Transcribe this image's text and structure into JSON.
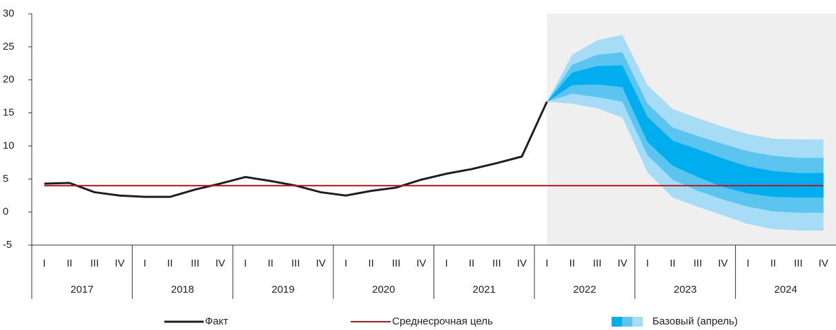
{
  "chart_data": {
    "type": "fan",
    "categories": [
      "I",
      "II",
      "III",
      "IV",
      "I",
      "II",
      "III",
      "IV",
      "I",
      "II",
      "III",
      "IV",
      "I",
      "II",
      "III",
      "IV",
      "I",
      "II",
      "III",
      "IV",
      "I",
      "II",
      "III",
      "IV",
      "I",
      "II",
      "III",
      "IV",
      "I",
      "II",
      "III",
      "IV"
    ],
    "years": [
      "2017",
      "2018",
      "2019",
      "2020",
      "2021",
      "2022",
      "2023",
      "2024"
    ],
    "ylim": [
      -5,
      30
    ],
    "yticks": [
      -5,
      0,
      5,
      10,
      15,
      20,
      25,
      30
    ],
    "series": [
      {
        "name": "Факт",
        "color": "#1e1e1e",
        "values": [
          4.3,
          4.4,
          3.0,
          2.5,
          2.3,
          2.3,
          3.4,
          4.3,
          5.3,
          4.7,
          4.0,
          3.0,
          2.5,
          3.2,
          3.7,
          4.9,
          5.8,
          6.5,
          7.4,
          8.4,
          16.7,
          null,
          null,
          null,
          null,
          null,
          null,
          null,
          null,
          null,
          null,
          null
        ]
      },
      {
        "name": "Среднесрочная цель",
        "color": "#c0131a",
        "values": [
          4,
          4,
          4,
          4,
          4,
          4,
          4,
          4,
          4,
          4,
          4,
          4,
          4,
          4,
          4,
          4,
          4,
          4,
          4,
          4,
          4,
          4,
          4,
          4,
          4,
          4,
          4,
          4,
          4,
          4,
          4,
          4
        ]
      }
    ],
    "fan": {
      "name": "Базовый (апрель)",
      "colors": [
        "#a6dcf5",
        "#5bc5f0",
        "#00aeef"
      ],
      "bands": [
        {
          "upper": [
            null,
            null,
            null,
            null,
            null,
            null,
            null,
            null,
            null,
            null,
            null,
            null,
            null,
            null,
            null,
            null,
            null,
            null,
            null,
            null,
            16.7,
            23.8,
            26.0,
            26.8,
            19.2,
            15.6,
            14.2,
            12.9,
            11.8,
            11.1,
            11.0,
            11.0
          ],
          "lower": [
            null,
            null,
            null,
            null,
            null,
            null,
            null,
            null,
            null,
            null,
            null,
            null,
            null,
            null,
            null,
            null,
            null,
            null,
            null,
            null,
            16.7,
            16.4,
            15.7,
            14.3,
            6.0,
            2.2,
            0.8,
            -0.5,
            -1.8,
            -2.6,
            -2.8,
            -2.8
          ]
        },
        {
          "upper": [
            null,
            null,
            null,
            null,
            null,
            null,
            null,
            null,
            null,
            null,
            null,
            null,
            null,
            null,
            null,
            null,
            null,
            null,
            null,
            null,
            16.7,
            22.3,
            23.8,
            24.2,
            16.4,
            12.8,
            11.5,
            10.3,
            9.2,
            8.5,
            8.2,
            8.2
          ],
          "lower": [
            null,
            null,
            null,
            null,
            null,
            null,
            null,
            null,
            null,
            null,
            null,
            null,
            null,
            null,
            null,
            null,
            null,
            null,
            null,
            null,
            16.7,
            17.9,
            17.4,
            16.7,
            8.6,
            4.9,
            3.2,
            1.9,
            0.8,
            0.1,
            -0.1,
            -0.1
          ]
        },
        {
          "upper": [
            null,
            null,
            null,
            null,
            null,
            null,
            null,
            null,
            null,
            null,
            null,
            null,
            null,
            null,
            null,
            null,
            null,
            null,
            null,
            null,
            16.7,
            21.1,
            22.1,
            22.2,
            14.4,
            10.8,
            9.5,
            8.1,
            6.9,
            6.2,
            5.9,
            5.9
          ],
          "lower": [
            null,
            null,
            null,
            null,
            null,
            null,
            null,
            null,
            null,
            null,
            null,
            null,
            null,
            null,
            null,
            null,
            null,
            null,
            null,
            null,
            16.7,
            19.2,
            19.3,
            18.9,
            10.6,
            7.0,
            5.3,
            3.8,
            2.8,
            2.3,
            2.2,
            2.2
          ]
        }
      ]
    }
  }
}
